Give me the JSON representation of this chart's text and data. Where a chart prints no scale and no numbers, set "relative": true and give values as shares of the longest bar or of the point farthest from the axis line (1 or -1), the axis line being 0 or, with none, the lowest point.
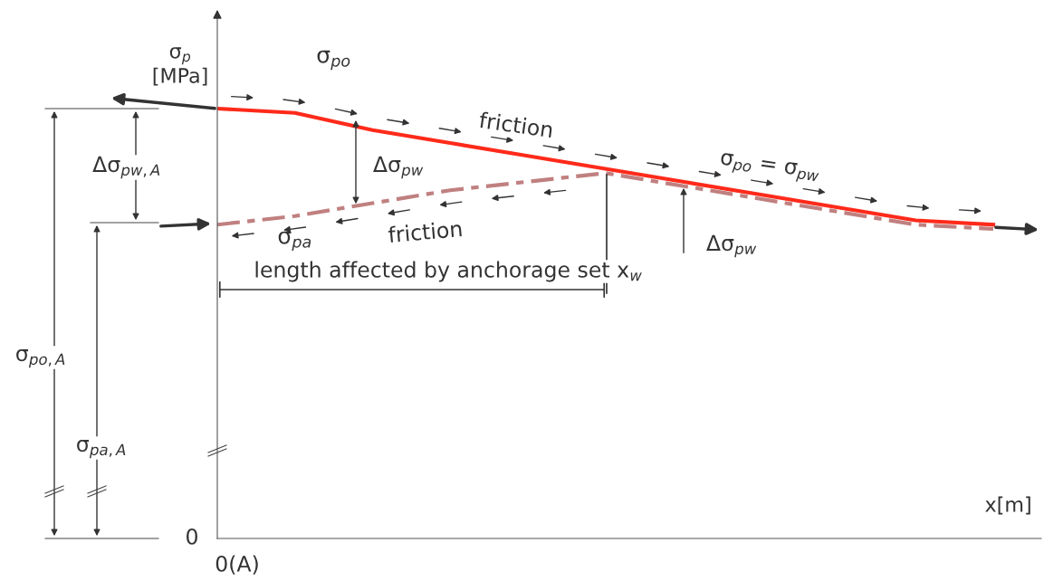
{
  "chart_data": {
    "type": "line",
    "relative": true,
    "ylabel": "σ$_{p}$\n[MPa]",
    "xlabel": "x[m]",
    "categories": [
      null,
      null,
      null,
      null,
      null,
      null,
      null,
      null,
      null,
      null,
      null
    ],
    "series": [
      {
        "name": "σ$_{po}$",
        "color": "#ff2a1a",
        "line_style": "solid",
        "values": [
          1,
          0.99,
          0.95,
          0.92,
          0.89,
          0.86,
          0.83,
          0.8,
          0.77,
          0.74,
          0.73
        ]
      },
      {
        "name": "σ$_{pa}$",
        "color": "#c08080",
        "line_style": "dashed",
        "values": [
          0.73,
          0.75,
          0.78,
          0.81,
          0.83,
          0.85,
          0.82,
          0.79,
          0.76,
          0.73,
          0.72
        ]
      }
    ],
    "annotations": [
      "friction",
      "Δσ$_{pw}$",
      "friction",
      "length affected by anchorage set x$_{w}$",
      "σ$_{po}$ = σ$_{pw}$",
      "Δσ$_{pw}$",
      "Δσ$_{pw,A}$",
      "σ$_{po,A}$",
      "σ$_{pa,A}$",
      "0",
      "0(A)"
    ],
    "grid": false,
    "legend": false,
    "marker": "none"
  }
}
